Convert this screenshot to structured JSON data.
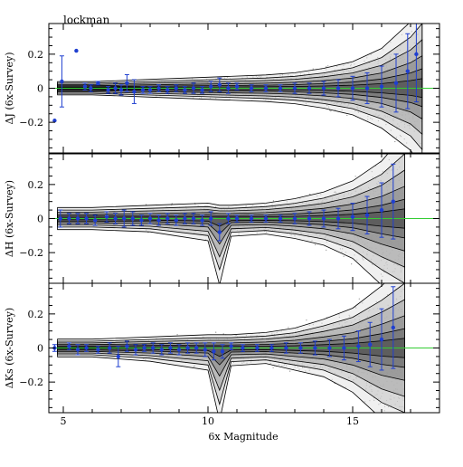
{
  "chart_data": {
    "field_label": "lockman",
    "xlabel": "6x Magnitude",
    "xlim": [
      4.5,
      18
    ],
    "x_ticks": [
      5,
      10,
      15
    ],
    "shared_x": true,
    "background_style": "grey scatter cloud with black density contours",
    "reference_line": {
      "y": 0,
      "color": "#33cc33"
    },
    "point_color": "#1f3fd0",
    "panels": [
      {
        "type": "scatter",
        "ylabel": "ΔJ (6x-Survey)",
        "ylim": [
          -0.38,
          0.38
        ],
        "y_ticks": [
          -0.2,
          0,
          0.2
        ],
        "y_tick_labels": [
          "−0.2",
          "0",
          "0.2"
        ],
        "envelope": {
          "x": [
            4.8,
            6,
            8,
            10,
            12,
            13,
            14,
            15,
            16,
            17,
            17.4
          ],
          "upper": [
            0.03,
            0.03,
            0.04,
            0.05,
            0.06,
            0.07,
            0.09,
            0.12,
            0.18,
            0.3,
            0.38
          ],
          "lower": [
            -0.03,
            -0.03,
            -0.04,
            -0.05,
            -0.06,
            -0.07,
            -0.09,
            -0.12,
            -0.18,
            -0.28,
            -0.36
          ]
        },
        "points": [
          {
            "x": 4.7,
            "y": -0.19,
            "err": 0.0
          },
          {
            "x": 4.95,
            "y": 0.04,
            "err": 0.15
          },
          {
            "x": 5.45,
            "y": 0.22,
            "err": 0.0
          },
          {
            "x": 5.75,
            "y": 0.01,
            "err": 0.02
          },
          {
            "x": 5.95,
            "y": 0.0,
            "err": 0.02
          },
          {
            "x": 6.2,
            "y": 0.03,
            "err": 0.01
          },
          {
            "x": 6.55,
            "y": -0.01,
            "err": 0.02
          },
          {
            "x": 6.8,
            "y": 0.0,
            "err": 0.03
          },
          {
            "x": 7.0,
            "y": -0.01,
            "err": 0.03
          },
          {
            "x": 7.2,
            "y": 0.03,
            "err": 0.05
          },
          {
            "x": 7.45,
            "y": -0.02,
            "err": 0.07
          },
          {
            "x": 7.75,
            "y": -0.01,
            "err": 0.02
          },
          {
            "x": 8.0,
            "y": -0.01,
            "err": 0.02
          },
          {
            "x": 8.3,
            "y": 0.0,
            "err": 0.02
          },
          {
            "x": 8.6,
            "y": -0.01,
            "err": 0.02
          },
          {
            "x": 8.9,
            "y": 0.0,
            "err": 0.02
          },
          {
            "x": 9.2,
            "y": -0.01,
            "err": 0.02
          },
          {
            "x": 9.5,
            "y": 0.0,
            "err": 0.03
          },
          {
            "x": 9.8,
            "y": -0.01,
            "err": 0.02
          },
          {
            "x": 10.1,
            "y": 0.01,
            "err": 0.03
          },
          {
            "x": 10.4,
            "y": 0.02,
            "err": 0.04
          },
          {
            "x": 10.7,
            "y": 0.0,
            "err": 0.03
          },
          {
            "x": 11.0,
            "y": 0.01,
            "err": 0.02
          },
          {
            "x": 11.5,
            "y": 0.0,
            "err": 0.02
          },
          {
            "x": 12.0,
            "y": 0.0,
            "err": 0.02
          },
          {
            "x": 12.5,
            "y": 0.0,
            "err": 0.02
          },
          {
            "x": 13.0,
            "y": 0.0,
            "err": 0.03
          },
          {
            "x": 13.5,
            "y": 0.0,
            "err": 0.03
          },
          {
            "x": 14.0,
            "y": 0.0,
            "err": 0.04
          },
          {
            "x": 14.5,
            "y": 0.0,
            "err": 0.05
          },
          {
            "x": 15.0,
            "y": 0.0,
            "err": 0.07
          },
          {
            "x": 15.5,
            "y": 0.0,
            "err": 0.09
          },
          {
            "x": 16.0,
            "y": 0.01,
            "err": 0.12
          },
          {
            "x": 16.5,
            "y": 0.03,
            "err": 0.17
          },
          {
            "x": 16.9,
            "y": 0.1,
            "err": 0.22
          },
          {
            "x": 17.2,
            "y": 0.2,
            "err": 0.28
          }
        ]
      },
      {
        "type": "scatter",
        "ylabel": "ΔH (6x-Survey)",
        "ylim": [
          -0.38,
          0.38
        ],
        "y_ticks": [
          -0.2,
          0,
          0.2
        ],
        "y_tick_labels": [
          "−0.2",
          "0",
          "0.2"
        ],
        "envelope": {
          "x": [
            4.8,
            6,
            8,
            10,
            10.4,
            10.8,
            12,
            13,
            14,
            15,
            16,
            16.8
          ],
          "upper": [
            0.05,
            0.05,
            0.06,
            0.07,
            0.06,
            0.06,
            0.07,
            0.09,
            0.12,
            0.17,
            0.26,
            0.38
          ],
          "lower": [
            -0.05,
            -0.05,
            -0.06,
            -0.1,
            -0.3,
            -0.08,
            -0.07,
            -0.09,
            -0.12,
            -0.18,
            -0.3,
            -0.38
          ]
        },
        "points": [
          {
            "x": 4.9,
            "y": 0.0,
            "err": 0.05
          },
          {
            "x": 5.2,
            "y": 0.0,
            "err": 0.03
          },
          {
            "x": 5.5,
            "y": 0.0,
            "err": 0.03
          },
          {
            "x": 5.8,
            "y": 0.0,
            "err": 0.03
          },
          {
            "x": 6.1,
            "y": -0.01,
            "err": 0.03
          },
          {
            "x": 6.5,
            "y": 0.01,
            "err": 0.03
          },
          {
            "x": 6.8,
            "y": 0.0,
            "err": 0.03
          },
          {
            "x": 7.1,
            "y": 0.0,
            "err": 0.05
          },
          {
            "x": 7.4,
            "y": 0.0,
            "err": 0.04
          },
          {
            "x": 7.7,
            "y": -0.01,
            "err": 0.03
          },
          {
            "x": 8.0,
            "y": 0.0,
            "err": 0.03
          },
          {
            "x": 8.3,
            "y": -0.01,
            "err": 0.03
          },
          {
            "x": 8.6,
            "y": 0.0,
            "err": 0.03
          },
          {
            "x": 8.9,
            "y": -0.01,
            "err": 0.03
          },
          {
            "x": 9.2,
            "y": 0.0,
            "err": 0.03
          },
          {
            "x": 9.5,
            "y": 0.0,
            "err": 0.03
          },
          {
            "x": 9.8,
            "y": -0.01,
            "err": 0.03
          },
          {
            "x": 10.1,
            "y": 0.0,
            "err": 0.04
          },
          {
            "x": 10.4,
            "y": -0.08,
            "err": 0.05
          },
          {
            "x": 10.7,
            "y": 0.0,
            "err": 0.03
          },
          {
            "x": 11.0,
            "y": 0.0,
            "err": 0.02
          },
          {
            "x": 11.5,
            "y": 0.0,
            "err": 0.02
          },
          {
            "x": 12.0,
            "y": 0.0,
            "err": 0.02
          },
          {
            "x": 12.5,
            "y": 0.0,
            "err": 0.02
          },
          {
            "x": 13.0,
            "y": 0.0,
            "err": 0.03
          },
          {
            "x": 13.5,
            "y": 0.0,
            "err": 0.04
          },
          {
            "x": 14.0,
            "y": 0.0,
            "err": 0.05
          },
          {
            "x": 14.5,
            "y": 0.0,
            "err": 0.06
          },
          {
            "x": 15.0,
            "y": 0.01,
            "err": 0.08
          },
          {
            "x": 15.5,
            "y": 0.02,
            "err": 0.11
          },
          {
            "x": 16.0,
            "y": 0.05,
            "err": 0.16
          },
          {
            "x": 16.4,
            "y": 0.1,
            "err": 0.22
          }
        ]
      },
      {
        "type": "scatter",
        "ylabel": "ΔKs (6x-Survey)",
        "ylim": [
          -0.38,
          0.38
        ],
        "y_ticks": [
          -0.2,
          0,
          0.2
        ],
        "y_tick_labels": [
          "−0.2",
          "0",
          "0.2"
        ],
        "envelope": {
          "x": [
            4.8,
            6,
            8,
            10,
            10.4,
            10.8,
            12,
            13,
            14,
            15,
            16,
            16.8
          ],
          "upper": [
            0.04,
            0.04,
            0.05,
            0.06,
            0.06,
            0.06,
            0.07,
            0.09,
            0.13,
            0.18,
            0.28,
            0.38
          ],
          "lower": [
            -0.04,
            -0.04,
            -0.06,
            -0.1,
            -0.33,
            -0.08,
            -0.07,
            -0.1,
            -0.13,
            -0.2,
            -0.32,
            -0.38
          ]
        },
        "points": [
          {
            "x": 4.7,
            "y": 0.0,
            "err": 0.02
          },
          {
            "x": 5.2,
            "y": 0.01,
            "err": 0.02
          },
          {
            "x": 5.5,
            "y": -0.01,
            "err": 0.03
          },
          {
            "x": 5.8,
            "y": 0.0,
            "err": 0.02
          },
          {
            "x": 6.2,
            "y": -0.01,
            "err": 0.02
          },
          {
            "x": 6.6,
            "y": 0.0,
            "err": 0.03
          },
          {
            "x": 6.9,
            "y": -0.05,
            "err": 0.06
          },
          {
            "x": 7.2,
            "y": 0.01,
            "err": 0.03
          },
          {
            "x": 7.5,
            "y": -0.01,
            "err": 0.03
          },
          {
            "x": 7.8,
            "y": 0.0,
            "err": 0.02
          },
          {
            "x": 8.1,
            "y": 0.0,
            "err": 0.03
          },
          {
            "x": 8.4,
            "y": -0.01,
            "err": 0.03
          },
          {
            "x": 8.7,
            "y": 0.0,
            "err": 0.03
          },
          {
            "x": 9.0,
            "y": -0.01,
            "err": 0.03
          },
          {
            "x": 9.3,
            "y": 0.0,
            "err": 0.03
          },
          {
            "x": 9.6,
            "y": 0.0,
            "err": 0.03
          },
          {
            "x": 9.9,
            "y": -0.01,
            "err": 0.04
          },
          {
            "x": 10.2,
            "y": -0.02,
            "err": 0.05
          },
          {
            "x": 10.5,
            "y": -0.02,
            "err": 0.04
          },
          {
            "x": 10.8,
            "y": 0.01,
            "err": 0.02
          },
          {
            "x": 11.2,
            "y": 0.0,
            "err": 0.02
          },
          {
            "x": 11.7,
            "y": 0.0,
            "err": 0.02
          },
          {
            "x": 12.2,
            "y": 0.0,
            "err": 0.02
          },
          {
            "x": 12.7,
            "y": 0.0,
            "err": 0.03
          },
          {
            "x": 13.2,
            "y": 0.0,
            "err": 0.03
          },
          {
            "x": 13.7,
            "y": 0.0,
            "err": 0.04
          },
          {
            "x": 14.2,
            "y": 0.0,
            "err": 0.05
          },
          {
            "x": 14.7,
            "y": 0.0,
            "err": 0.07
          },
          {
            "x": 15.2,
            "y": 0.01,
            "err": 0.09
          },
          {
            "x": 15.6,
            "y": 0.02,
            "err": 0.13
          },
          {
            "x": 16.0,
            "y": 0.05,
            "err": 0.18
          },
          {
            "x": 16.4,
            "y": 0.12,
            "err": 0.24
          }
        ]
      }
    ]
  }
}
